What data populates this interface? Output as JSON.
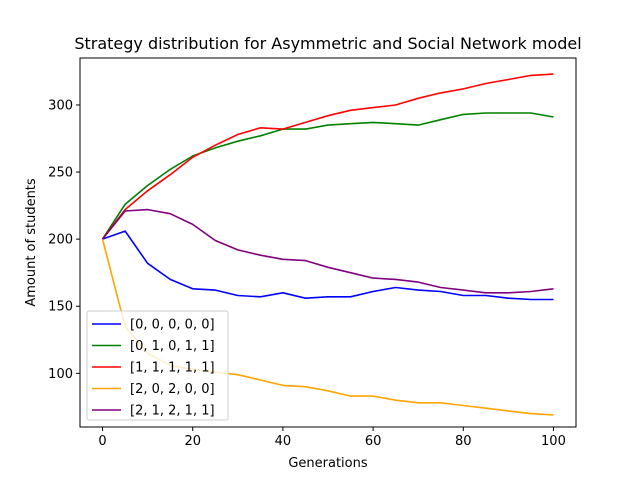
{
  "chart_data": {
    "type": "line",
    "title": "Strategy distribution for Asymmetric and Social Network model",
    "xlabel": "Generations",
    "ylabel": "Amount of students",
    "xlim": [
      -5,
      105
    ],
    "ylim": [
      60,
      335
    ],
    "xticks": [
      0,
      20,
      40,
      60,
      80,
      100
    ],
    "yticks": [
      100,
      150,
      200,
      250,
      300
    ],
    "grid": false,
    "legend_position": "lower-left",
    "x": [
      0,
      5,
      10,
      15,
      20,
      25,
      30,
      35,
      40,
      45,
      50,
      55,
      60,
      65,
      70,
      75,
      80,
      85,
      90,
      95,
      100
    ],
    "series": [
      {
        "name": "[0, 0, 0, 0, 0]",
        "color": "#0000ff",
        "values": [
          200,
          206,
          182,
          170,
          163,
          162,
          158,
          157,
          160,
          156,
          157,
          157,
          161,
          164,
          162,
          161,
          158,
          158,
          156,
          155,
          155
        ]
      },
      {
        "name": "[0, 1, 0, 1, 1]",
        "color": "#008000",
        "values": [
          200,
          226,
          240,
          252,
          262,
          268,
          273,
          277,
          282,
          282,
          285,
          286,
          287,
          286,
          285,
          289,
          293,
          294,
          294,
          294,
          291
        ]
      },
      {
        "name": "[1, 1, 1, 1, 1]",
        "color": "#ff0000",
        "values": [
          200,
          222,
          236,
          248,
          261,
          270,
          278,
          283,
          282,
          287,
          292,
          296,
          298,
          300,
          305,
          309,
          312,
          316,
          319,
          322,
          323
        ]
      },
      {
        "name": "[2, 0, 2, 0, 0]",
        "color": "#ffa500",
        "values": [
          200,
          135,
          115,
          106,
          103,
          101,
          99,
          95,
          91,
          90,
          87,
          83,
          83,
          80,
          78,
          78,
          76,
          74,
          72,
          70,
          69
        ]
      },
      {
        "name": "[2, 1, 2, 1, 1]",
        "color": "#800080",
        "values": [
          200,
          221,
          222,
          219,
          211,
          199,
          192,
          188,
          185,
          184,
          179,
          175,
          171,
          170,
          168,
          164,
          162,
          160,
          160,
          161,
          163
        ]
      }
    ]
  }
}
